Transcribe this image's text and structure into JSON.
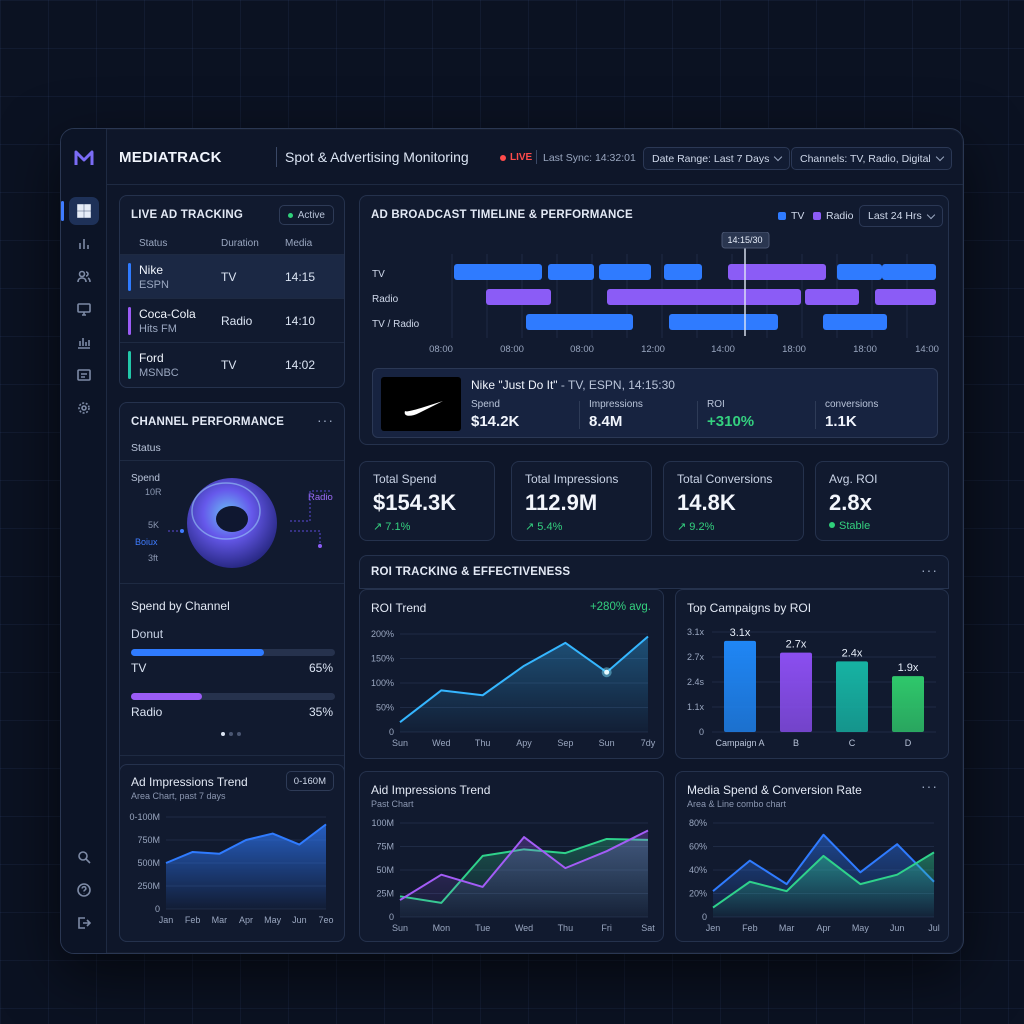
{
  "app": {
    "brand": "MEDIATRACK",
    "subtitle": "Spot & Advertising Monitoring",
    "live": "LIVE",
    "last_sync": "Last Sync: 14:32:01",
    "date_range": "Date Range: Last 7 Days",
    "channels": "Channels: TV, Radio, Digital"
  },
  "sidebar": {
    "icons": [
      "dashboard-icon",
      "bar-chart-icon",
      "users-icon",
      "monitor-icon",
      "analytics-icon",
      "media-icon",
      "gear-icon"
    ],
    "bottom_icons": [
      "search-icon",
      "help-icon",
      "logout-icon"
    ]
  },
  "live_tracking": {
    "title": "LIVE AD TRACKING",
    "badge": "Active",
    "headers": [
      "Status",
      "Duration",
      "Media"
    ],
    "rows": [
      {
        "brand": "Nike",
        "network": "ESPN",
        "media": "TV",
        "time": "14:15",
        "color": "#2f7bff"
      },
      {
        "brand": "Coca-Cola",
        "network": "Hits FM",
        "media": "Radio",
        "time": "14:10",
        "color": "#9b5cf6"
      },
      {
        "brand": "Ford",
        "network": "MSNBC",
        "media": "TV",
        "time": "14:02",
        "color": "#22c7a9"
      }
    ]
  },
  "channel_performance": {
    "title": "CHANNEL PERFORMANCE",
    "status": "Status",
    "spend": "Spend",
    "ticks": [
      "10R",
      "5K",
      "3ft"
    ],
    "boux": "Boiux",
    "radio": "Radio"
  },
  "spend_by_channel": {
    "title": "Spend by Channel",
    "type": "Donut",
    "items": [
      {
        "label": "TV",
        "value": "65%",
        "fraction": 0.65,
        "color": "#2f7bff"
      },
      {
        "label": "Radio",
        "value": "35%",
        "fraction": 0.35,
        "color": "#9b5cf6"
      }
    ]
  },
  "timeline": {
    "title": "AD BROADCAST TIMELINE & PERFORMANCE",
    "legend": [
      {
        "label": "TV",
        "color": "#2f7bff"
      },
      {
        "label": "Radio",
        "color": "#8b5cf6"
      }
    ],
    "range": "Last 24 Hrs",
    "marker": "14:15/30",
    "rows": [
      "TV",
      "Radio",
      "TV / Radio"
    ],
    "ticks": [
      "08:00",
      "08:00",
      "08:00",
      "12:00",
      "14:00",
      "18:00",
      "18:00",
      "14:00"
    ]
  },
  "spot": {
    "title": "Nike \"Just Do It\"",
    "meta": " - TV, ESPN, 14:15:30",
    "stats": [
      {
        "label": "Spend",
        "value": "$14.2K"
      },
      {
        "label": "Impressions",
        "value": "8.4M"
      },
      {
        "label": "ROI",
        "value": "+310%"
      },
      {
        "label": "conversions",
        "value": "1.1K"
      }
    ]
  },
  "kpis": [
    {
      "label": "Total Spend",
      "value": "$154.3K",
      "change": "↗ 7.1%"
    },
    {
      "label": "Total Impressions",
      "value": "112.9M",
      "change": "↗ 5.4%"
    },
    {
      "label": "Total Conversions",
      "value": "14.8K",
      "change": "↗ 9.2%"
    },
    {
      "label": "Avg. ROI",
      "value": "2.8x",
      "change": "Stable"
    }
  ],
  "roi_section": {
    "title": "ROI TRACKING & EFFECTIVENESS"
  },
  "chart_data": [
    {
      "id": "roi-trend",
      "type": "line",
      "title": "ROI Trend",
      "annotation": "+280% avg.",
      "categories": [
        "Sun",
        "Wed",
        "Thu",
        "Apy",
        "Sep",
        "Sun",
        "7dy"
      ],
      "values": [
        20,
        85,
        75,
        135,
        182,
        122,
        195
      ],
      "y_ticks": [
        "200%",
        "150%",
        "100%",
        "50%",
        "0"
      ],
      "ylim": [
        0,
        200
      ]
    },
    {
      "id": "top-campaigns",
      "type": "bar",
      "title": "Top Campaigns by ROI",
      "categories": [
        "Campaign A",
        "B",
        "C",
        "D"
      ],
      "values": [
        3.1,
        2.7,
        2.4,
        1.9
      ],
      "labels": [
        "3.1x",
        "2.7x",
        "2.4x",
        "1.9x"
      ],
      "colors": [
        "#1f86f5",
        "#8b4ef0",
        "#16b3a3",
        "#2fc86b"
      ],
      "y_ticks": [
        "3.1x",
        "2.7x",
        "2.4s",
        "1.1x",
        "0"
      ],
      "ylim": [
        0,
        3.4
      ]
    },
    {
      "id": "impressions-small",
      "type": "area",
      "title": "Ad Impressions Trend",
      "subtitle": "Area Chart, past 7 days",
      "badge": "0-160M",
      "categories": [
        "Jan",
        "Feb",
        "Mar",
        "Apr",
        "May",
        "Jun",
        "7eo"
      ],
      "values": [
        500,
        620,
        600,
        750,
        820,
        700,
        920
      ],
      "y_ticks": [
        "0-100M",
        "750M",
        "500M",
        "250M",
        "0"
      ],
      "ylim": [
        0,
        1000
      ]
    },
    {
      "id": "impressions-main",
      "type": "line",
      "title": "Aid Impressions Trend",
      "subtitle": "Past Chart",
      "categories": [
        "Sun",
        "Mon",
        "Tue",
        "Wed",
        "Thu",
        "Fri",
        "Sat"
      ],
      "series": [
        {
          "color": "#2fd28b",
          "values": [
            22,
            15,
            65,
            72,
            68,
            83,
            82
          ]
        },
        {
          "color": "#a35cf6",
          "values": [
            18,
            45,
            32,
            85,
            52,
            70,
            92
          ]
        }
      ],
      "y_ticks": [
        "100M",
        "75M",
        "50M",
        "25M",
        "0"
      ],
      "ylim": [
        0,
        100
      ]
    },
    {
      "id": "spend-conversion",
      "type": "area",
      "title": "Media Spend & Conversion Rate",
      "subtitle": "Area & Line combo chart",
      "categories": [
        "Jen",
        "Feb",
        "Mar",
        "Apr",
        "May",
        "Jun",
        "Jul"
      ],
      "series": [
        {
          "color": "#2f7bff",
          "values": [
            22,
            48,
            28,
            70,
            38,
            62,
            30
          ]
        },
        {
          "color": "#2fd28b",
          "values": [
            8,
            30,
            22,
            52,
            28,
            36,
            55
          ]
        }
      ],
      "y_ticks": [
        "80%",
        "60%",
        "40%",
        "20%",
        "0"
      ],
      "ylim": [
        0,
        80
      ]
    }
  ]
}
